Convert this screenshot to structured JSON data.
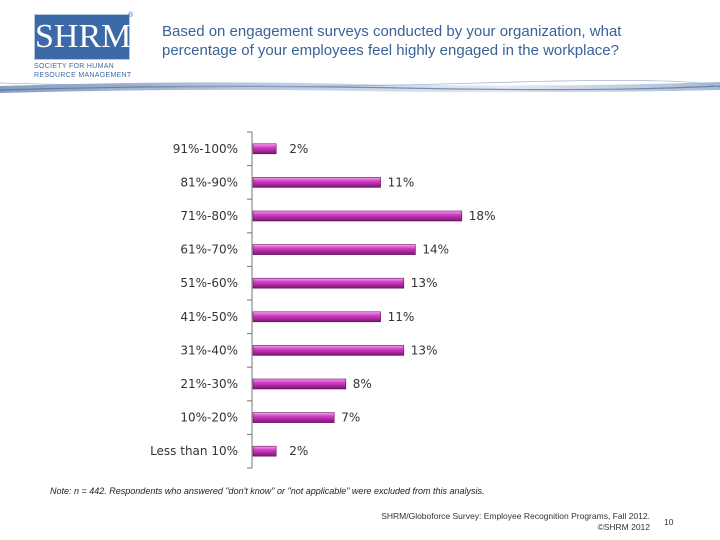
{
  "logo": {
    "mark": "SHRM",
    "registered": "®",
    "subtitle": "SOCIETY FOR HUMAN RESOURCE MANAGEMENT"
  },
  "header": {
    "title": "Based on engagement surveys conducted by your organization, what percentage of your employees feel highly engaged in the workplace?"
  },
  "chart_data": {
    "type": "bar",
    "orientation": "horizontal",
    "title": "Based on engagement surveys conducted by your organization, what percentage of your employees feel highly engaged in the workplace?",
    "categories": [
      "91%-100%",
      "81%-90%",
      "71%-80%",
      "61%-70%",
      "51%-60%",
      "41%-50%",
      "31%-40%",
      "21%-30%",
      "10%-20%",
      "Less than 10%"
    ],
    "values": [
      2,
      11,
      18,
      14,
      13,
      11,
      13,
      8,
      7,
      2
    ],
    "value_labels": [
      "2%",
      "11%",
      "18%",
      "14%",
      "13%",
      "11%",
      "13%",
      "8%",
      "7%",
      "2%"
    ],
    "xlim": [
      0,
      20
    ],
    "bar_color": "#d63fc8",
    "xlabel": "",
    "ylabel": ""
  },
  "footer": {
    "note": "Note: n = 442. Respondents who answered \"don't know\" or \"not applicable\" were excluded from this analysis.",
    "source_line1": "SHRM/Globoforce Survey: Employee Recognition Programs, Fall 2012.",
    "source_line2": "©SHRM 2012",
    "page_number": "10"
  },
  "colors": {
    "title": "#3a6296",
    "brand": "#3c6aa8",
    "bar": "#d63fc8"
  }
}
